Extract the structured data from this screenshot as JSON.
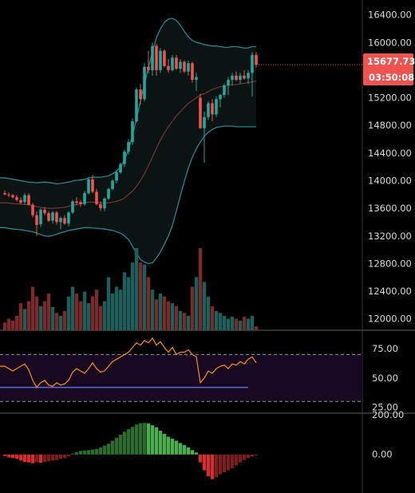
{
  "theme": {
    "background": "#000000",
    "up_color": "#26a69a",
    "down_color": "#ef5350",
    "bb_fill": "#0b1412",
    "bb_band_color": "#2a8e9b",
    "bb_basis_color": "#8a3b3b",
    "volume_up_color": "#1f5f5b",
    "volume_down_color": "#7a2b2b",
    "separator_color": "#5e5e5e",
    "rsi_line_color": "#ff8c1a",
    "rsi_band_color": "#160920",
    "rsi_level_line_color": "#5b6fd6",
    "macd_pos_strong": "#4caf50",
    "macd_pos_weak": "#2e6b30",
    "macd_neg_strong": "#d32f2f",
    "macd_neg_weak": "#7a1f1f"
  },
  "price_tag": {
    "price": "15677.73",
    "countdown": "03:50:08",
    "color": "#ef5350"
  },
  "chart_data": [
    {
      "type": "candlestick",
      "panel": "price",
      "y_ticks": [
        "16400.00",
        "16000.00",
        "15600.00",
        "15200.00",
        "14800.00",
        "14400.00",
        "14000.00",
        "13600.00",
        "13200.00",
        "12800.00",
        "12400.00",
        "12000.00"
      ],
      "y_tick_values": [
        16400,
        16000,
        15600,
        15200,
        14800,
        14400,
        14000,
        13600,
        13200,
        12800,
        12400,
        12000
      ],
      "ylim": [
        11835,
        16615
      ],
      "last_price": 15677.73,
      "candles": [
        [
          13820,
          13860,
          13790,
          13800
        ],
        [
          13800,
          13830,
          13760,
          13790
        ],
        [
          13790,
          13810,
          13740,
          13760
        ],
        [
          13760,
          13790,
          13700,
          13720
        ],
        [
          13720,
          13760,
          13660,
          13680
        ],
        [
          13690,
          13820,
          13660,
          13790
        ],
        [
          13790,
          13820,
          13640,
          13650
        ],
        [
          13650,
          13680,
          13470,
          13500
        ],
        [
          13500,
          13560,
          13200,
          13360
        ],
        [
          13370,
          13600,
          13330,
          13580
        ],
        [
          13580,
          13620,
          13500,
          13530
        ],
        [
          13530,
          13560,
          13400,
          13420
        ],
        [
          13420,
          13560,
          13380,
          13540
        ],
        [
          13540,
          13560,
          13360,
          13400
        ],
        [
          13400,
          13480,
          13300,
          13460
        ],
        [
          13460,
          13500,
          13360,
          13380
        ],
        [
          13380,
          13560,
          13340,
          13540
        ],
        [
          13540,
          13720,
          13520,
          13700
        ],
        [
          13700,
          13760,
          13640,
          13680
        ],
        [
          13690,
          13720,
          13620,
          13660
        ],
        [
          13660,
          13850,
          13640,
          13820
        ],
        [
          13820,
          14050,
          13800,
          14020
        ],
        [
          14020,
          14080,
          13820,
          13840
        ],
        [
          13840,
          13880,
          13640,
          13660
        ],
        [
          13660,
          13700,
          13560,
          13600
        ],
        [
          13600,
          13760,
          13560,
          13740
        ],
        [
          13740,
          13900,
          13720,
          13880
        ],
        [
          13880,
          14020,
          13860,
          14000
        ],
        [
          14000,
          14150,
          13960,
          14120
        ],
        [
          14120,
          14260,
          14100,
          14240
        ],
        [
          14240,
          14450,
          14200,
          14420
        ],
        [
          14420,
          14600,
          14380,
          14560
        ],
        [
          14560,
          14900,
          14520,
          14860
        ],
        [
          14860,
          15350,
          14840,
          15320
        ],
        [
          15320,
          15400,
          15100,
          15180
        ],
        [
          15180,
          15700,
          15150,
          15650
        ],
        [
          15650,
          15880,
          15550,
          15600
        ],
        [
          15600,
          16000,
          15520,
          15950
        ],
        [
          15950,
          15980,
          15520,
          15600
        ],
        [
          15600,
          15920,
          15560,
          15880
        ],
        [
          15880,
          15900,
          15640,
          15660
        ],
        [
          15660,
          15760,
          15560,
          15600
        ],
        [
          15600,
          15820,
          15580,
          15780
        ],
        [
          15780,
          15820,
          15600,
          15620
        ],
        [
          15620,
          15760,
          15560,
          15720
        ],
        [
          15720,
          15740,
          15560,
          15580
        ],
        [
          15580,
          15740,
          15520,
          15700
        ],
        [
          15700,
          15720,
          15420,
          15460
        ],
        [
          15460,
          15560,
          15300,
          15500
        ],
        [
          15200,
          15260,
          14750,
          14760
        ],
        [
          14760,
          15000,
          14260,
          14920
        ],
        [
          14920,
          15150,
          14880,
          15120
        ],
        [
          15120,
          15180,
          14860,
          14960
        ],
        [
          14960,
          15220,
          14920,
          15180
        ],
        [
          15180,
          15260,
          15060,
          15240
        ],
        [
          15240,
          15400,
          15200,
          15380
        ],
        [
          15380,
          15500,
          15240,
          15460
        ],
        [
          15460,
          15560,
          15380,
          15520
        ],
        [
          15520,
          15580,
          15440,
          15460
        ],
        [
          15460,
          15560,
          15400,
          15520
        ],
        [
          15520,
          15600,
          15460,
          15480
        ],
        [
          15480,
          15600,
          15400,
          15560
        ],
        [
          15560,
          15860,
          15220,
          15820
        ],
        [
          15820,
          15860,
          15640,
          15677.73
        ]
      ],
      "bb_upper": [
        14040,
        14030,
        14020,
        14010,
        14000,
        13990,
        13980,
        13975,
        13970,
        13975,
        13980,
        13975,
        13965,
        13955,
        13960,
        13970,
        13980,
        13995,
        14005,
        14010,
        14020,
        14040,
        14050,
        14050,
        14050,
        14060,
        14070,
        14100,
        14140,
        14200,
        14300,
        14450,
        14650,
        14900,
        15150,
        15400,
        15640,
        15870,
        16070,
        16200,
        16290,
        16340,
        16350,
        16320,
        16250,
        16160,
        16080,
        16030,
        16000,
        15990,
        15970,
        15960,
        15950,
        15950,
        15940,
        15930,
        15930,
        15940,
        15940,
        15930,
        15920,
        15920,
        15940,
        15940
      ],
      "bb_lower": [
        13320,
        13310,
        13300,
        13295,
        13290,
        13280,
        13270,
        13260,
        13240,
        13220,
        13200,
        13195,
        13205,
        13225,
        13245,
        13260,
        13280,
        13290,
        13300,
        13310,
        13320,
        13320,
        13315,
        13310,
        13305,
        13300,
        13290,
        13280,
        13260,
        13240,
        13200,
        13150,
        13050,
        12950,
        12860,
        12820,
        12800,
        12810,
        12880,
        12970,
        13080,
        13200,
        13350,
        13560,
        13780,
        13990,
        14180,
        14340,
        14460,
        14560,
        14640,
        14700,
        14740,
        14770,
        14780,
        14790,
        14790,
        14790,
        14780,
        14780,
        14780,
        14780,
        14780,
        14780
      ],
      "bb_basis": [
        13680,
        13675,
        13670,
        13665,
        13660,
        13655,
        13650,
        13640,
        13625,
        13615,
        13605,
        13600,
        13600,
        13605,
        13610,
        13615,
        13630,
        13645,
        13655,
        13665,
        13680,
        13690,
        13690,
        13685,
        13680,
        13680,
        13680,
        13690,
        13700,
        13720,
        13750,
        13800,
        13850,
        13920,
        14000,
        14100,
        14220,
        14340,
        14470,
        14590,
        14690,
        14780,
        14860,
        14940,
        15000,
        15060,
        15120,
        15160,
        15200,
        15240,
        15260,
        15290,
        15320,
        15340,
        15360,
        15370,
        15380,
        15390,
        15390,
        15400,
        15410,
        15420,
        15430,
        15440
      ],
      "volume": [
        8,
        12,
        10,
        15,
        28,
        22,
        30,
        45,
        35,
        25,
        30,
        38,
        24,
        18,
        15,
        20,
        35,
        45,
        38,
        30,
        40,
        28,
        35,
        42,
        25,
        30,
        55,
        38,
        45,
        42,
        60,
        55,
        70,
        85,
        70,
        68,
        55,
        42,
        32,
        38,
        35,
        30,
        28,
        25,
        20,
        18,
        15,
        45,
        55,
        85,
        50,
        35,
        25,
        20,
        18,
        15,
        12,
        14,
        12,
        10,
        14,
        12,
        15,
        4
      ]
    },
    {
      "type": "line",
      "panel": "rsi",
      "y_ticks": [
        "75.00",
        "50.00",
        "25.00"
      ],
      "y_tick_values": [
        75,
        50,
        25
      ],
      "ylim": [
        20,
        90
      ],
      "levels": [
        70,
        30
      ],
      "support_level": 42,
      "values": [
        60,
        58,
        56,
        58,
        60,
        62,
        57,
        48,
        42,
        46,
        48,
        44,
        43,
        46,
        44,
        45,
        48,
        55,
        58,
        56,
        54,
        58,
        63,
        58,
        55,
        56,
        60,
        64,
        66,
        68,
        70,
        72,
        76,
        80,
        78,
        82,
        80,
        84,
        78,
        81,
        76,
        72,
        76,
        70,
        72,
        72,
        74,
        70,
        68,
        46,
        50,
        56,
        54,
        58,
        60,
        61,
        58,
        62,
        61,
        64,
        62,
        66,
        68,
        63
      ]
    },
    {
      "type": "histogram",
      "panel": "macd",
      "y_ticks": [
        "200.00",
        "0.00"
      ],
      "y_tick_values": [
        200,
        0
      ],
      "ylim": [
        -195,
        205
      ],
      "values": [
        -8,
        -15,
        -18,
        -22,
        -30,
        -38,
        -40,
        -45,
        -40,
        -42,
        -38,
        -35,
        -30,
        -28,
        -22,
        -18,
        -10,
        5,
        12,
        18,
        20,
        22,
        25,
        28,
        35,
        45,
        55,
        70,
        85,
        100,
        115,
        128,
        140,
        152,
        158,
        160,
        158,
        148,
        138,
        120,
        105,
        90,
        80,
        70,
        58,
        48,
        36,
        22,
        10,
        -40,
        -80,
        -110,
        -125,
        -115,
        -100,
        -90,
        -80,
        -70,
        -55,
        -40,
        -28,
        -18,
        -10,
        -5
      ]
    }
  ]
}
